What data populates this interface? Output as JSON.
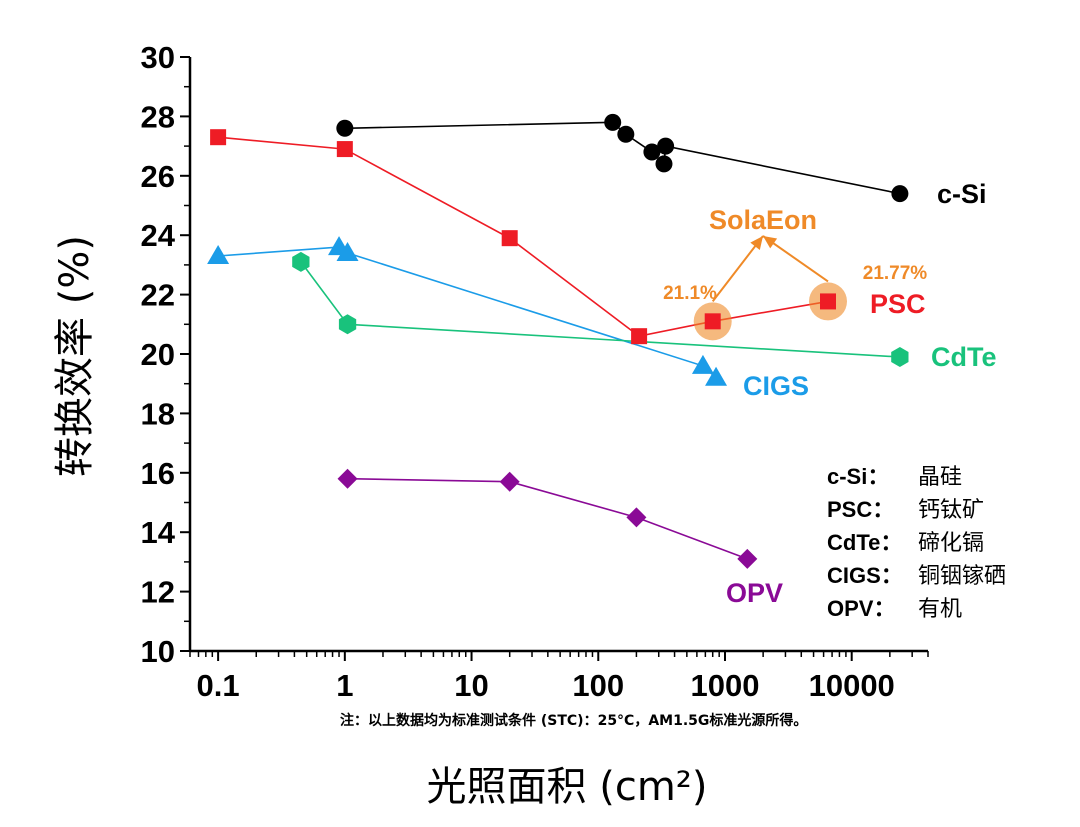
{
  "chart_data": {
    "type": "line",
    "xlabel": "光照面积 (cm²)",
    "ylabel": "转换效率 (%)",
    "x_scale": "log",
    "xlim": [
      0.06,
      40000
    ],
    "ylim": [
      10,
      30
    ],
    "x_ticks": [
      0.1,
      1,
      10,
      100,
      1000,
      10000
    ],
    "x_tick_labels": [
      "0.1",
      "1",
      "10",
      "100",
      "1000",
      "10000"
    ],
    "y_ticks": [
      10,
      12,
      14,
      16,
      18,
      20,
      22,
      24,
      26,
      28,
      30
    ],
    "y_tick_labels": [
      "10",
      "12",
      "14",
      "16",
      "18",
      "20",
      "22",
      "24",
      "26",
      "28",
      "30"
    ],
    "grid": false,
    "series": [
      {
        "id": "csi",
        "name": "c-Si",
        "color": "#000000",
        "marker": "circle",
        "x": [
          1.0,
          130,
          165,
          265,
          330,
          340,
          24000
        ],
        "y": [
          27.6,
          27.8,
          27.4,
          26.8,
          26.4,
          27.0,
          25.4
        ]
      },
      {
        "id": "psc",
        "name": "PSC",
        "color": "#ee1c25",
        "marker": "square",
        "x": [
          0.1,
          1.0,
          20,
          210,
          800,
          6500
        ],
        "y": [
          27.3,
          26.9,
          23.9,
          20.6,
          21.1,
          21.77
        ]
      },
      {
        "id": "cigs",
        "name": "CIGS",
        "color": "#1b9ce8",
        "marker": "triangle",
        "x": [
          0.1,
          0.9,
          1.05,
          670,
          850
        ],
        "y": [
          23.3,
          23.6,
          23.4,
          19.6,
          19.2
        ]
      },
      {
        "id": "cdte",
        "name": "CdTe",
        "color": "#19c27c",
        "marker": "hexagon",
        "x": [
          0.45,
          1.05,
          24000
        ],
        "y": [
          23.1,
          21.0,
          19.9
        ]
      },
      {
        "id": "opv",
        "name": "OPV",
        "color": "#8a0a96",
        "marker": "diamond",
        "x": [
          1.05,
          20,
          200,
          1500
        ],
        "y": [
          15.8,
          15.7,
          14.5,
          13.1
        ]
      }
    ],
    "highlights": [
      {
        "label": "21.1%",
        "x": 800,
        "y": 21.1
      },
      {
        "label": "21.77%",
        "x": 6500,
        "y": 21.77
      }
    ],
    "highlight_brand": "SolaEon",
    "highlight_color": "#ef8a28"
  },
  "legend": [
    {
      "key": "c-Si：",
      "value": "晶硅"
    },
    {
      "key": "PSC：",
      "value": "钙钛矿"
    },
    {
      "key": "CdTe：",
      "value": "碲化镉"
    },
    {
      "key": "CIGS：",
      "value": "铜铟镓硒"
    },
    {
      "key": "OPV：",
      "value": "有机"
    }
  ],
  "footnote": "注：以上数据均为标准测试条件 (STC)：25°C，AM1.5G标准光源所得。"
}
